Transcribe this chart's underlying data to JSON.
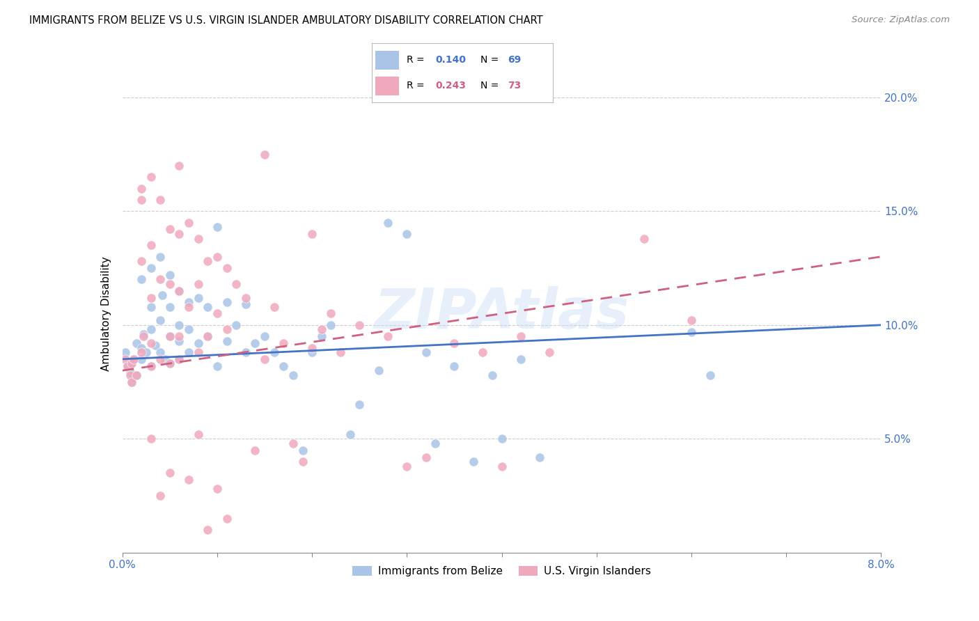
{
  "title": "IMMIGRANTS FROM BELIZE VS U.S. VIRGIN ISLANDER AMBULATORY DISABILITY CORRELATION CHART",
  "source": "Source: ZipAtlas.com",
  "ylabel": "Ambulatory Disability",
  "xlim": [
    0.0,
    0.08
  ],
  "ylim": [
    0.0,
    0.21
  ],
  "x_ticks": [
    0.0,
    0.01,
    0.02,
    0.03,
    0.04,
    0.05,
    0.06,
    0.07,
    0.08
  ],
  "x_tick_labels_show": [
    "0.0%",
    "8.0%"
  ],
  "y_ticks": [
    0.05,
    0.1,
    0.15,
    0.2
  ],
  "y_tick_labels": [
    "5.0%",
    "10.0%",
    "15.0%",
    "20.0%"
  ],
  "color_blue": "#aac4e8",
  "color_pink": "#f0a8bc",
  "line_color_blue": "#4472c4",
  "line_color_pink": "#d06080",
  "watermark": "ZIPAtlas",
  "legend_r1": "R = 0.140",
  "legend_n1": "N = 69",
  "legend_r2": "R = 0.243",
  "legend_n2": "N = 73",
  "belize_x": [
    0.0003,
    0.0005,
    0.0008,
    0.001,
    0.001,
    0.0012,
    0.0015,
    0.0015,
    0.002,
    0.002,
    0.002,
    0.0022,
    0.0025,
    0.003,
    0.003,
    0.003,
    0.003,
    0.0035,
    0.004,
    0.004,
    0.004,
    0.0042,
    0.0045,
    0.005,
    0.005,
    0.005,
    0.005,
    0.006,
    0.006,
    0.006,
    0.006,
    0.007,
    0.007,
    0.007,
    0.008,
    0.008,
    0.009,
    0.009,
    0.01,
    0.01,
    0.011,
    0.011,
    0.012,
    0.013,
    0.013,
    0.014,
    0.015,
    0.016,
    0.017,
    0.018,
    0.019,
    0.02,
    0.021,
    0.022,
    0.024,
    0.025,
    0.027,
    0.028,
    0.03,
    0.032,
    0.033,
    0.035,
    0.037,
    0.039,
    0.04,
    0.042,
    0.044,
    0.06,
    0.062
  ],
  "belize_y": [
    0.088,
    0.082,
    0.079,
    0.075,
    0.083,
    0.085,
    0.092,
    0.078,
    0.12,
    0.09,
    0.085,
    0.096,
    0.088,
    0.125,
    0.108,
    0.098,
    0.082,
    0.091,
    0.13,
    0.102,
    0.088,
    0.113,
    0.085,
    0.122,
    0.108,
    0.095,
    0.083,
    0.115,
    0.1,
    0.093,
    0.085,
    0.11,
    0.098,
    0.088,
    0.112,
    0.092,
    0.108,
    0.095,
    0.143,
    0.082,
    0.11,
    0.093,
    0.1,
    0.109,
    0.088,
    0.092,
    0.095,
    0.088,
    0.082,
    0.078,
    0.045,
    0.088,
    0.095,
    0.1,
    0.052,
    0.065,
    0.08,
    0.145,
    0.14,
    0.088,
    0.048,
    0.082,
    0.04,
    0.078,
    0.05,
    0.085,
    0.042,
    0.097,
    0.078
  ],
  "virgin_x": [
    0.0003,
    0.0005,
    0.0008,
    0.001,
    0.001,
    0.0012,
    0.0015,
    0.002,
    0.002,
    0.002,
    0.0022,
    0.003,
    0.003,
    0.003,
    0.003,
    0.004,
    0.004,
    0.004,
    0.005,
    0.005,
    0.005,
    0.005,
    0.006,
    0.006,
    0.006,
    0.006,
    0.007,
    0.007,
    0.008,
    0.008,
    0.008,
    0.009,
    0.009,
    0.01,
    0.01,
    0.011,
    0.011,
    0.012,
    0.013,
    0.014,
    0.015,
    0.016,
    0.017,
    0.018,
    0.019,
    0.02,
    0.021,
    0.022,
    0.023,
    0.025,
    0.003,
    0.028,
    0.03,
    0.032,
    0.035,
    0.038,
    0.04,
    0.042,
    0.045,
    0.02,
    0.055,
    0.06,
    0.002,
    0.006,
    0.015,
    0.003,
    0.008,
    0.01,
    0.005,
    0.007,
    0.004,
    0.009,
    0.011
  ],
  "virgin_y": [
    0.085,
    0.082,
    0.078,
    0.075,
    0.083,
    0.085,
    0.078,
    0.155,
    0.128,
    0.088,
    0.095,
    0.135,
    0.112,
    0.092,
    0.082,
    0.155,
    0.12,
    0.085,
    0.142,
    0.118,
    0.095,
    0.083,
    0.14,
    0.115,
    0.095,
    0.085,
    0.145,
    0.108,
    0.138,
    0.118,
    0.088,
    0.128,
    0.095,
    0.13,
    0.105,
    0.125,
    0.098,
    0.118,
    0.112,
    0.045,
    0.085,
    0.108,
    0.092,
    0.048,
    0.04,
    0.09,
    0.098,
    0.105,
    0.088,
    0.1,
    0.165,
    0.095,
    0.038,
    0.042,
    0.092,
    0.088,
    0.038,
    0.095,
    0.088,
    0.14,
    0.138,
    0.102,
    0.16,
    0.17,
    0.175,
    0.05,
    0.052,
    0.028,
    0.035,
    0.032,
    0.025,
    0.01,
    0.015
  ]
}
